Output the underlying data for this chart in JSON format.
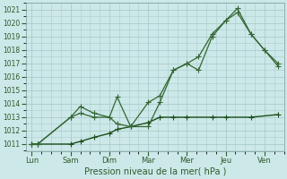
{
  "background_color": "#cde8e8",
  "grid_color": "#aacccc",
  "line_color_med": "#336633",
  "line_color_dark": "#1a4d1a",
  "xlabel": "Pression niveau de la mer( hPa )",
  "ylim": [
    1010.5,
    1021.5
  ],
  "yticks": [
    1011,
    1012,
    1013,
    1014,
    1015,
    1016,
    1017,
    1018,
    1019,
    1020,
    1021
  ],
  "x_labels": [
    "Lun",
    "Sam",
    "Dim",
    "Mar",
    "Mer",
    "Jeu",
    "Ven"
  ],
  "x_positions": [
    0,
    1,
    2,
    3,
    4,
    5,
    6
  ],
  "xlim": [
    -0.15,
    6.5
  ],
  "line1": {
    "x": [
      0.0,
      0.15,
      1.0,
      1.25,
      1.6,
      2.0,
      2.2,
      2.55,
      3.0,
      3.3,
      3.65,
      4.0,
      4.3,
      4.65,
      5.0,
      5.3,
      5.65,
      6.0,
      6.35
    ],
    "y": [
      1011.0,
      1011.0,
      1013.0,
      1013.8,
      1013.3,
      1013.0,
      1014.5,
      1012.3,
      1014.1,
      1014.6,
      1016.5,
      1017.0,
      1017.5,
      1019.2,
      1020.2,
      1021.1,
      1019.2,
      1018.0,
      1016.8
    ]
  },
  "line2": {
    "x": [
      0.0,
      0.15,
      1.0,
      1.25,
      1.6,
      2.0,
      2.2,
      2.55,
      3.0,
      3.3,
      3.65,
      4.0,
      4.3,
      4.65,
      5.0,
      5.3,
      5.65,
      6.0,
      6.35
    ],
    "y": [
      1011.0,
      1011.0,
      1013.0,
      1013.3,
      1013.0,
      1013.0,
      1012.5,
      1012.3,
      1012.3,
      1014.1,
      1016.5,
      1017.0,
      1016.5,
      1019.0,
      1020.2,
      1020.8,
      1019.2,
      1018.0,
      1017.0
    ]
  },
  "line3": {
    "x": [
      0.0,
      0.15,
      1.0,
      1.25,
      1.6,
      2.0,
      2.2,
      2.55,
      3.0,
      3.3,
      3.65,
      4.0,
      4.65,
      5.0,
      5.65,
      6.35
    ],
    "y": [
      1011.0,
      1011.0,
      1011.0,
      1011.2,
      1011.5,
      1011.8,
      1012.1,
      1012.3,
      1012.6,
      1013.0,
      1013.0,
      1013.0,
      1013.0,
      1013.0,
      1013.0,
      1013.2
    ]
  }
}
